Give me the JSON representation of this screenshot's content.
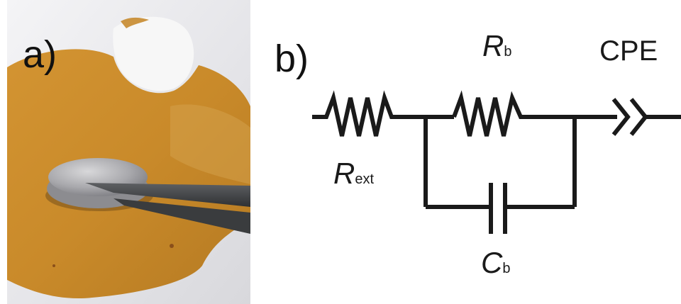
{
  "panels": {
    "a": {
      "label": "a)"
    },
    "b": {
      "label": "b)"
    }
  },
  "circuit": {
    "components": {
      "r_ext": {
        "symbol": "R",
        "subscript": "ext"
      },
      "r_b": {
        "symbol": "R",
        "subscript": "b"
      },
      "c_b": {
        "symbol": "C",
        "subscript": "b"
      },
      "cpe": {
        "symbol": "CPE"
      }
    }
  },
  "colors": {
    "film": "#c98a2a",
    "film_dark": "#b87a1f",
    "background": "#ededf0",
    "wire": "#1a1a1a"
  }
}
